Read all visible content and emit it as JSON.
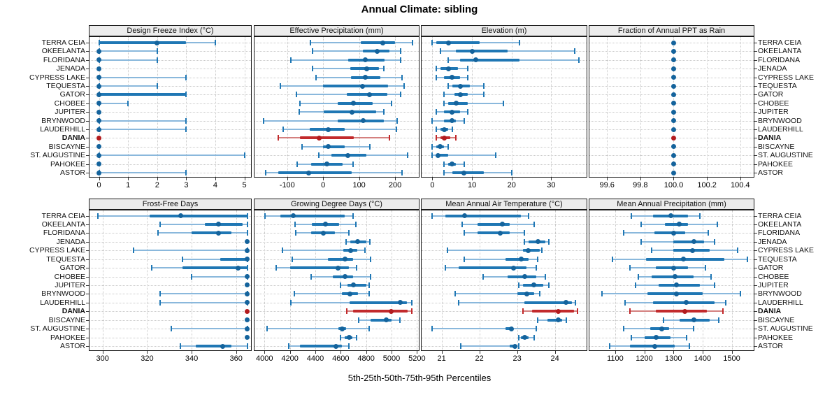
{
  "title": "Annual Climate: sibling",
  "caption": "5th-25th-50th-75th-95th Percentiles",
  "highlight_site": "DANIA",
  "colors": {
    "blue": "#1f77b4",
    "blue_light": "#8ab8dc",
    "blue_dot": "#14639c",
    "red": "#c22a2c",
    "red_light": "#d4807f",
    "red_dot": "#b31b1e",
    "strip_bg": "#ececec",
    "grid": "#c9c9c9",
    "tick": "#333333",
    "border": "#1b1b1b"
  },
  "chart_data": {
    "type": "dotplot-percentiles",
    "percentiles": [
      5,
      25,
      50,
      75,
      95
    ],
    "legend_note": "thin line = 5th-95th, thick line = 25th-75th, dot = median",
    "grid": "dotted",
    "categories": [
      "TERRA CEIA",
      "OKEELANTA",
      "FLORIDANA",
      "JENADA",
      "CYPRESS LAKE",
      "TEQUESTA",
      "GATOR",
      "CHOBEE",
      "JUPITER",
      "BRYNWOOD",
      "LAUDERHILL",
      "DANIA",
      "BISCAYNE",
      "ST. AUGUSTINE",
      "PAHOKEE",
      "ASTOR"
    ],
    "panels": [
      {
        "title": "Design Freeze Index (°C)",
        "row": 0,
        "col": 0,
        "xlim": [
          -0.35,
          5.25
        ],
        "ticks": [
          0,
          1,
          2,
          3,
          4,
          5
        ],
        "tick_labels": [
          "0",
          "1",
          "2",
          "3",
          "4",
          "5"
        ],
        "values": [
          [
            0,
            0,
            2,
            3,
            4
          ],
          [
            0,
            0,
            0,
            0,
            2
          ],
          [
            0,
            0,
            0,
            0,
            2
          ],
          [
            0,
            0,
            0,
            0,
            0
          ],
          [
            0,
            0,
            0,
            0,
            3
          ],
          [
            0,
            0,
            0,
            0,
            2
          ],
          [
            0,
            0,
            0,
            3,
            3
          ],
          [
            0,
            0,
            0,
            0,
            1
          ],
          [
            0,
            0,
            0,
            0,
            0
          ],
          [
            0,
            0,
            0,
            0,
            3
          ],
          [
            0,
            0,
            0,
            0,
            3
          ],
          [
            0,
            0,
            0,
            0,
            0
          ],
          [
            0,
            0,
            0,
            0,
            0
          ],
          [
            0,
            0,
            0,
            0,
            5
          ],
          [
            0,
            0,
            0,
            0,
            0
          ],
          [
            0,
            0,
            0,
            0,
            3
          ]
        ]
      },
      {
        "title": "Effective Precipitation (mm)",
        "row": 0,
        "col": 1,
        "xlim": [
          -193,
          268
        ],
        "ticks": [
          -100,
          0,
          100,
          200
        ],
        "tick_labels": [
          "-100",
          "0",
          "100",
          "200"
        ],
        "values": [
          [
            -35,
            105,
            165,
            200,
            248
          ],
          [
            -30,
            110,
            150,
            185,
            215
          ],
          [
            -90,
            70,
            118,
            170,
            215
          ],
          [
            -30,
            75,
            122,
            155,
            168
          ],
          [
            -20,
            77,
            118,
            160,
            220
          ],
          [
            -120,
            0,
            110,
            180,
            225
          ],
          [
            -75,
            65,
            128,
            178,
            215
          ],
          [
            -65,
            40,
            85,
            138,
            190
          ],
          [
            -67,
            2,
            80,
            148,
            168
          ],
          [
            -165,
            40,
            112,
            168,
            205
          ],
          [
            -112,
            -37,
            15,
            60,
            203
          ],
          [
            -125,
            -65,
            -12,
            85,
            185
          ],
          [
            -58,
            0,
            15,
            60,
            130
          ],
          [
            -12,
            22,
            68,
            120,
            235
          ],
          [
            -73,
            -34,
            10,
            54,
            84
          ],
          [
            -160,
            -125,
            -40,
            80,
            219
          ]
        ]
      },
      {
        "title": "Elevation (m)",
        "row": 0,
        "col": 2,
        "xlim": [
          -2.9,
          39.1
        ],
        "ticks": [
          0,
          10,
          20,
          30
        ],
        "tick_labels": [
          "0",
          "10",
          "20",
          "30"
        ],
        "values": [
          [
            0,
            1,
            4,
            12,
            22
          ],
          [
            2,
            6,
            10,
            19,
            36
          ],
          [
            4,
            7,
            11,
            22,
            37
          ],
          [
            1,
            2,
            4,
            6.5,
            9
          ],
          [
            1,
            3,
            5,
            7,
            9
          ],
          [
            4,
            5,
            7,
            9.5,
            13
          ],
          [
            3,
            5.5,
            7,
            9,
            13
          ],
          [
            3,
            4,
            6,
            9,
            18
          ],
          [
            1,
            3,
            5,
            7,
            9
          ],
          [
            0,
            3,
            5,
            6,
            8
          ],
          [
            1,
            2,
            3,
            4,
            5
          ],
          [
            1,
            2,
            3,
            4.5,
            6
          ],
          [
            0,
            1,
            2,
            3,
            4
          ],
          [
            0,
            1,
            1.5,
            4,
            16
          ],
          [
            3,
            4,
            5,
            6,
            8
          ],
          [
            3,
            5,
            8,
            13,
            20
          ]
        ]
      },
      {
        "title": "Fraction of Annual PPT as Rain",
        "row": 0,
        "col": 3,
        "xlim": [
          99.49,
          100.485
        ],
        "ticks": [
          99.6,
          99.8,
          100.0,
          100.2,
          100.4
        ],
        "tick_labels": [
          "99.6",
          "99.8",
          "100.0",
          "100.2",
          "100.4"
        ],
        "values": [
          [
            100,
            100,
            100,
            100,
            100
          ],
          [
            100,
            100,
            100,
            100,
            100
          ],
          [
            100,
            100,
            100,
            100,
            100
          ],
          [
            100,
            100,
            100,
            100,
            100
          ],
          [
            100,
            100,
            100,
            100,
            100
          ],
          [
            100,
            100,
            100,
            100,
            100
          ],
          [
            100,
            100,
            100,
            100,
            100
          ],
          [
            100,
            100,
            100,
            100,
            100
          ],
          [
            100,
            100,
            100,
            100,
            100
          ],
          [
            100,
            100,
            100,
            100,
            100
          ],
          [
            100,
            100,
            100,
            100,
            100
          ],
          [
            100,
            100,
            100,
            100,
            100
          ],
          [
            100,
            100,
            100,
            100,
            100
          ],
          [
            100,
            100,
            100,
            100,
            100
          ],
          [
            100,
            100,
            100,
            100,
            100
          ],
          [
            100,
            100,
            100,
            100,
            100
          ]
        ]
      },
      {
        "title": "Frost-Free Days",
        "row": 1,
        "col": 0,
        "xlim": [
          293.8,
          367
        ],
        "ticks": [
          300,
          320,
          340,
          360
        ],
        "tick_labels": [
          "300",
          "320",
          "340",
          "360"
        ],
        "values": [
          [
            298,
            321,
            335,
            365,
            365
          ],
          [
            326,
            346,
            352,
            363,
            365
          ],
          [
            325,
            340,
            352,
            358,
            365
          ],
          [
            365,
            365,
            365,
            365,
            365
          ],
          [
            314,
            365,
            365,
            365,
            365
          ],
          [
            336,
            353,
            365,
            365,
            365
          ],
          [
            322,
            336,
            361,
            365,
            365
          ],
          [
            340,
            365,
            365,
            365,
            365
          ],
          [
            365,
            365,
            365,
            365,
            365
          ],
          [
            326,
            365,
            365,
            365,
            365
          ],
          [
            326,
            365,
            365,
            365,
            365
          ],
          [
            365,
            365,
            365,
            365,
            365
          ],
          [
            365,
            365,
            365,
            365,
            365
          ],
          [
            331,
            365,
            365,
            365,
            365
          ],
          [
            365,
            365,
            365,
            365,
            365
          ],
          [
            335,
            342,
            354,
            358,
            365
          ]
        ]
      },
      {
        "title": "Growing Degree Days (°C)",
        "row": 1,
        "col": 1,
        "xlim": [
          3916,
          5220
        ],
        "ticks": [
          4000,
          4200,
          4400,
          4600,
          4800,
          5000,
          5200
        ],
        "tick_labels": [
          "4000",
          "4200",
          "4400",
          "4600",
          "4800",
          "5000",
          "5200"
        ],
        "values": [
          [
            4005,
            4125,
            4225,
            4630,
            4700
          ],
          [
            4240,
            4375,
            4480,
            4590,
            4720
          ],
          [
            4245,
            4365,
            4465,
            4555,
            4665
          ],
          [
            4640,
            4675,
            4735,
            4800,
            4830
          ],
          [
            4140,
            4620,
            4680,
            4730,
            4790
          ],
          [
            4220,
            4500,
            4635,
            4700,
            4835
          ],
          [
            4090,
            4200,
            4580,
            4665,
            4725
          ],
          [
            4365,
            4535,
            4635,
            4700,
            4835
          ],
          [
            4600,
            4655,
            4700,
            4800,
            4825
          ],
          [
            4235,
            4610,
            4675,
            4735,
            4825
          ],
          [
            4210,
            4670,
            5070,
            5120,
            5160
          ],
          [
            4650,
            4700,
            4995,
            5125,
            5160
          ],
          [
            4740,
            4835,
            4960,
            5000,
            5065
          ],
          [
            4020,
            4580,
            4610,
            4640,
            4825
          ],
          [
            4600,
            4630,
            4665,
            4690,
            4725
          ],
          [
            4190,
            4280,
            4565,
            4610,
            4665
          ]
        ]
      },
      {
        "title": "Mean Annual Air Temperature (°C)",
        "row": 1,
        "col": 2,
        "xlim": [
          20.45,
          24.86
        ],
        "ticks": [
          21,
          22,
          23,
          24
        ],
        "tick_labels": [
          "21",
          "22",
          "23",
          "24"
        ],
        "values": [
          [
            20.75,
            21.1,
            21.6,
            23.1,
            23.3
          ],
          [
            21.55,
            21.95,
            22.6,
            22.8,
            23.45
          ],
          [
            21.6,
            21.95,
            22.55,
            22.8,
            23.2
          ],
          [
            23.2,
            23.3,
            23.55,
            23.75,
            23.85
          ],
          [
            21.15,
            23.15,
            23.3,
            23.6,
            23.65
          ],
          [
            21.6,
            22.7,
            23.1,
            23.3,
            23.55
          ],
          [
            21.1,
            21.45,
            22.9,
            23.25,
            23.5
          ],
          [
            22.1,
            22.75,
            23.2,
            23.5,
            23.75
          ],
          [
            23.05,
            23.15,
            23.45,
            23.7,
            23.85
          ],
          [
            21.35,
            23.0,
            23.25,
            23.45,
            23.6
          ],
          [
            21.45,
            23.2,
            24.3,
            24.45,
            24.55
          ],
          [
            23.15,
            23.4,
            24.1,
            24.5,
            24.6
          ],
          [
            23.55,
            23.8,
            24.1,
            24.2,
            24.3
          ],
          [
            20.75,
            22.7,
            22.85,
            22.9,
            23.5
          ],
          [
            23.05,
            23.1,
            23.2,
            23.3,
            23.45
          ],
          [
            21.5,
            22.8,
            22.95,
            23.0,
            23.05
          ]
        ]
      },
      {
        "title": "Mean Annual Precipitation (mm)",
        "row": 1,
        "col": 3,
        "xlim": [
          1009,
          1578
        ],
        "ticks": [
          1100,
          1200,
          1300,
          1400,
          1500
        ],
        "tick_labels": [
          "1100",
          "1200",
          "1300",
          "1400",
          "1500"
        ],
        "values": [
          [
            1155,
            1230,
            1290,
            1350,
            1390
          ],
          [
            1190,
            1270,
            1320,
            1350,
            1450
          ],
          [
            1130,
            1235,
            1300,
            1340,
            1420
          ],
          [
            1190,
            1300,
            1370,
            1405,
            1440
          ],
          [
            1225,
            1300,
            1365,
            1425,
            1520
          ],
          [
            1090,
            1205,
            1335,
            1475,
            1555
          ],
          [
            1150,
            1240,
            1300,
            1350,
            1410
          ],
          [
            1180,
            1225,
            1305,
            1370,
            1430
          ],
          [
            1170,
            1250,
            1310,
            1390,
            1440
          ],
          [
            1055,
            1210,
            1310,
            1400,
            1530
          ],
          [
            1135,
            1230,
            1345,
            1440,
            1480
          ],
          [
            1150,
            1240,
            1340,
            1415,
            1470
          ],
          [
            1265,
            1320,
            1370,
            1425,
            1455
          ],
          [
            1130,
            1220,
            1260,
            1285,
            1370
          ],
          [
            1155,
            1200,
            1240,
            1290,
            1345
          ],
          [
            1080,
            1150,
            1235,
            1305,
            1355
          ]
        ]
      }
    ]
  }
}
